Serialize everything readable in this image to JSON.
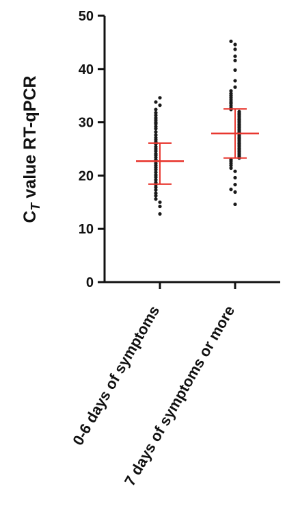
{
  "chart_data": {
    "type": "scatter",
    "ylabel_main": "C",
    "ylabel_sub": "T",
    "ylabel_rest": " value RT-qPCR",
    "ylim": [
      0,
      50
    ],
    "yticks": [
      "0",
      "10",
      "20",
      "30",
      "40",
      "50"
    ],
    "grid": false,
    "categories": [
      "0-6 days of symptoms",
      "7 days of symptoms or more"
    ],
    "series": [
      {
        "values": [
          34.6,
          33.8,
          33.2,
          32.4,
          31.8,
          31.3,
          30.8,
          30.4,
          30.0,
          29.7,
          29.2,
          28.8,
          28.2,
          27.6,
          27.1,
          26.7,
          26.3,
          25.9,
          25.4,
          25.0,
          24.6,
          24.1,
          23.8,
          23.4,
          23.0,
          22.7,
          22.3,
          21.9,
          21.5,
          21.1,
          20.6,
          20.1,
          19.7,
          19.2,
          18.7,
          18.3,
          17.8,
          17.3,
          16.7,
          16.2,
          15.6,
          15.0,
          14.2,
          12.8
        ],
        "mean": 22.7,
        "sd_upper": 26.1,
        "sd_lower": 18.4
      },
      {
        "values": [
          45.2,
          44.6,
          43.7,
          42.4,
          41.6,
          39.8,
          37.8,
          36.6,
          35.9,
          35.4,
          35.0,
          34.6,
          34.2,
          33.8,
          33.5,
          33.1,
          32.7,
          32.4,
          32.0,
          31.7,
          31.4,
          31.1,
          30.8,
          30.5,
          30.2,
          29.9,
          29.6,
          29.3,
          29.0,
          28.7,
          28.4,
          28.1,
          27.8,
          27.5,
          27.2,
          26.9,
          26.6,
          26.3,
          26.0,
          25.7,
          25.4,
          25.1,
          24.8,
          24.5,
          24.2,
          23.9,
          23.6,
          23.3,
          23.0,
          22.7,
          22.3,
          21.9,
          21.4,
          20.8,
          19.6,
          18.3,
          17.4,
          16.9,
          14.6
        ],
        "mean": 27.9,
        "sd_upper": 32.5,
        "sd_lower": 23.3
      }
    ],
    "colors": {
      "points": "#1a1a1a",
      "error_bars": "#e8372f",
      "axis": "#111111"
    }
  }
}
